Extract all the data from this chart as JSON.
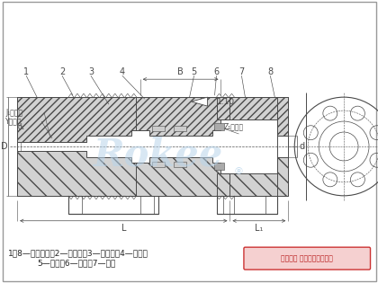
{
  "bg_color": "#ffffff",
  "line_color": "#4a4a4a",
  "hatch_color": "#555555",
  "watermark_color": "#b8d4ea",
  "watermark_text": "Rokee",
  "copyright_text": "版权所有 侵权必被严厉追究",
  "label_line1": "1、8—半联轴器；2—外挡板；3—内挡板；4—外套；",
  "label_line2": "5—柱销；6—螺栓；7—垫圈",
  "numbers": [
    "1",
    "2",
    "3",
    "4",
    "5",
    "6",
    "7",
    "8"
  ],
  "border_color": "#cc3333",
  "border_fill": "#f5d0d0",
  "title_color": "#222222"
}
